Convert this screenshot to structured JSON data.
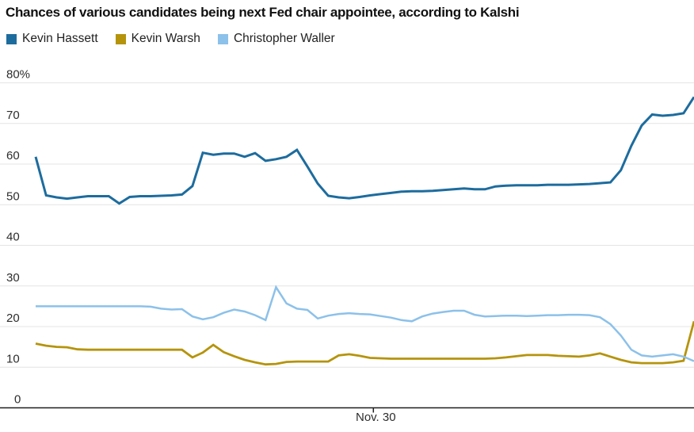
{
  "title": "Chances of various candidates being next Fed chair appointee, according to Kalshi",
  "chart_data": {
    "type": "line",
    "title": "Chances of various candidates being next Fed chair appointee, according to Kalshi",
    "xlabel": "",
    "ylabel": "",
    "ylim": [
      0,
      80
    ],
    "ytick_step": 10,
    "ytick_labels": [
      "0",
      "10",
      "20",
      "30",
      "40",
      "50",
      "60",
      "70",
      "80%"
    ],
    "grid": true,
    "legend_position": "top",
    "xtick": {
      "label": "Nov. 30",
      "frac": 0.513
    },
    "colors": {
      "grid": "#e4e4e4",
      "axis": "#1f1f1f",
      "tick_text": "#2d2d2d"
    },
    "series": [
      {
        "name": "Kevin Hassett",
        "color": "#1d6c9e",
        "values": [
          61.8,
          52.3,
          51.8,
          51.5,
          51.8,
          52.1,
          52.1,
          52.1,
          50.3,
          51.9,
          52.1,
          52.1,
          52.2,
          52.3,
          52.5,
          54.6,
          62.8,
          62.3,
          62.6,
          62.6,
          61.8,
          62.7,
          60.8,
          61.2,
          61.8,
          63.5,
          59.4,
          55.2,
          52.2,
          51.8,
          51.6,
          51.9,
          52.3,
          52.6,
          52.9,
          53.2,
          53.3,
          53.3,
          53.4,
          53.6,
          53.8,
          54.0,
          53.8,
          53.8,
          54.5,
          54.7,
          54.8,
          54.8,
          54.8,
          54.9,
          54.9,
          54.9,
          55.0,
          55.1,
          55.3,
          55.5,
          58.5,
          64.5,
          69.5,
          72.2,
          71.9,
          72.1,
          72.5,
          76.5
        ]
      },
      {
        "name": "Kevin Warsh",
        "color": "#b5940c",
        "values": [
          15.8,
          15.3,
          15.0,
          14.9,
          14.4,
          14.3,
          14.3,
          14.3,
          14.3,
          14.3,
          14.3,
          14.3,
          14.3,
          14.3,
          14.3,
          12.4,
          13.6,
          15.5,
          13.7,
          12.7,
          11.8,
          11.2,
          10.7,
          10.8,
          11.3,
          11.4,
          11.4,
          11.4,
          11.4,
          12.9,
          13.2,
          12.8,
          12.3,
          12.2,
          12.1,
          12.1,
          12.1,
          12.1,
          12.1,
          12.1,
          12.1,
          12.1,
          12.1,
          12.1,
          12.2,
          12.4,
          12.7,
          13.0,
          13.0,
          13.0,
          12.8,
          12.7,
          12.6,
          12.9,
          13.4,
          12.6,
          11.8,
          11.2,
          11.0,
          11.0,
          11.0,
          11.2,
          11.6,
          21.3
        ]
      },
      {
        "name": "Christopher Waller",
        "color": "#8cc1ea",
        "values": [
          25.0,
          25.0,
          25.0,
          25.0,
          25.0,
          25.0,
          25.0,
          25.0,
          25.0,
          25.0,
          25.0,
          24.9,
          24.4,
          24.2,
          24.3,
          22.5,
          21.8,
          22.3,
          23.4,
          24.2,
          23.7,
          22.8,
          21.6,
          29.7,
          25.7,
          24.4,
          24.1,
          22.0,
          22.7,
          23.1,
          23.3,
          23.1,
          23.0,
          22.6,
          22.2,
          21.6,
          21.3,
          22.5,
          23.2,
          23.6,
          23.9,
          23.9,
          22.9,
          22.5,
          22.6,
          22.7,
          22.7,
          22.6,
          22.7,
          22.8,
          22.8,
          22.9,
          22.9,
          22.8,
          22.3,
          20.6,
          17.8,
          14.3,
          12.9,
          12.6,
          12.9,
          13.2,
          12.6,
          11.5
        ]
      }
    ]
  }
}
